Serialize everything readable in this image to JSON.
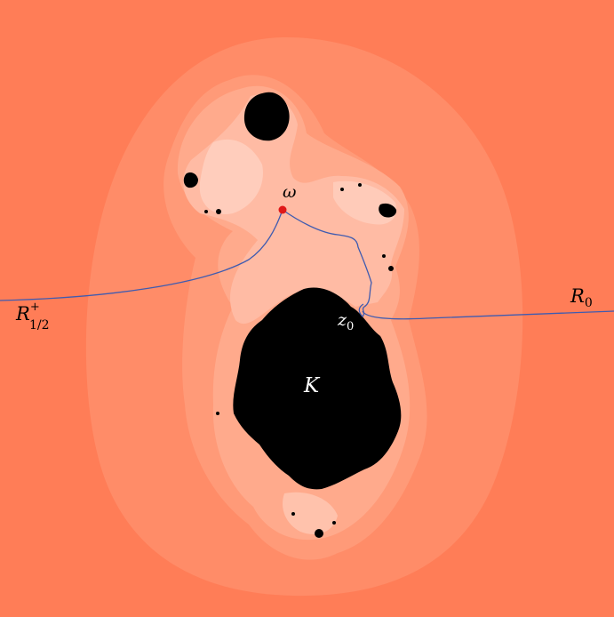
{
  "labels": {
    "omega": "ω",
    "K": "K",
    "z0_base": "z",
    "z0_sub": "0",
    "R0_base": "R",
    "R0_sub": "0",
    "Rhalf_base": "R",
    "Rhalf_sup": "+",
    "Rhalf_sub": "1/2"
  },
  "colors": {
    "background": "#ff7d57",
    "level1": "#ff8c68",
    "level2": "#ff9a78",
    "level3": "#ffaa8c",
    "level4": "#ffbba4",
    "level5": "#ffd2c2",
    "filled_set": "#000000",
    "ray": "#3f5bb0",
    "point": "#e01818",
    "label_light": "#ffffff",
    "label_dark": "#000000"
  }
}
